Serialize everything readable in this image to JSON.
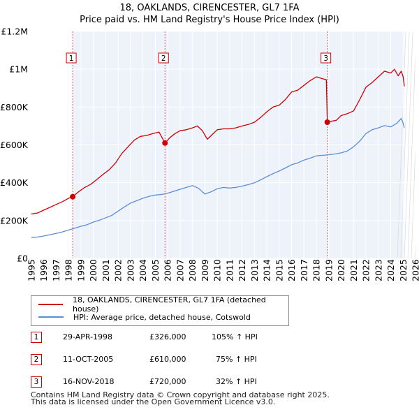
{
  "chart_data": {
    "type": "line",
    "title": "18, OAKLANDS, CIRENCESTER, GL7 1FA",
    "subtitle": "Price paid vs. HM Land Registry's House Price Index (HPI)",
    "xlim": [
      1995,
      2026
    ],
    "ylim": [
      0,
      1200000
    ],
    "x_ticks": [
      "1995",
      "1996",
      "1997",
      "1998",
      "1999",
      "2000",
      "2001",
      "2002",
      "2003",
      "2004",
      "2005",
      "2006",
      "2007",
      "2008",
      "2009",
      "2010",
      "2011",
      "2012",
      "2013",
      "2014",
      "2015",
      "2016",
      "2017",
      "2018",
      "2019",
      "2020",
      "2021",
      "2022",
      "2023",
      "2024",
      "2025",
      "2026"
    ],
    "y_ticks": [
      {
        "value": 0,
        "label": "£0"
      },
      {
        "value": 200000,
        "label": "£200K"
      },
      {
        "value": 400000,
        "label": "£400K"
      },
      {
        "value": 600000,
        "label": "£600K"
      },
      {
        "value": 800000,
        "label": "£800K"
      },
      {
        "value": 1000000,
        "label": "£1M"
      },
      {
        "value": 1200000,
        "label": "£1.2M"
      }
    ],
    "series": [
      {
        "name": "18, OAKLANDS, CIRENCESTER, GL7 1FA (detached house)",
        "color": "#cc0000",
        "x": [
          1995.0,
          1995.5,
          1996.0,
          1996.5,
          1997.0,
          1997.5,
          1998.0,
          1998.33,
          1998.8,
          1999.3,
          1999.8,
          2000.3,
          2000.8,
          2001.3,
          2001.8,
          2002.3,
          2002.8,
          2003.3,
          2003.8,
          2004.3,
          2004.8,
          2005.3,
          2005.78,
          2006.2,
          2006.6,
          2007.0,
          2007.5,
          2008.0,
          2008.4,
          2008.8,
          2009.2,
          2009.6,
          2010.0,
          2010.5,
          2011.0,
          2011.5,
          2012.0,
          2012.5,
          2013.0,
          2013.5,
          2014.0,
          2014.5,
          2015.0,
          2015.5,
          2016.0,
          2016.5,
          2017.0,
          2017.5,
          2018.0,
          2018.5,
          2018.8,
          2018.88,
          2019.2,
          2019.6,
          2020.0,
          2020.5,
          2021.0,
          2021.5,
          2022.0,
          2022.5,
          2023.0,
          2023.5,
          2024.0,
          2024.3,
          2024.6,
          2024.85,
          2025.0,
          2025.1
        ],
        "values": [
          235000,
          240000,
          255000,
          270000,
          285000,
          300000,
          318000,
          326000,
          352000,
          375000,
          392000,
          418000,
          445000,
          470000,
          505000,
          555000,
          590000,
          625000,
          645000,
          650000,
          660000,
          668000,
          610000,
          640000,
          660000,
          675000,
          680000,
          690000,
          700000,
          675000,
          630000,
          655000,
          680000,
          685000,
          685000,
          690000,
          700000,
          708000,
          720000,
          745000,
          775000,
          800000,
          810000,
          840000,
          880000,
          890000,
          915000,
          940000,
          960000,
          950000,
          945000,
          720000,
          725000,
          730000,
          755000,
          765000,
          780000,
          840000,
          905000,
          930000,
          960000,
          990000,
          980000,
          1000000,
          965000,
          990000,
          960000,
          910000
        ]
      },
      {
        "name": "HPI: Average price, detached house, Cotswold",
        "color": "#5b8fd6",
        "x": [
          1995.0,
          1995.5,
          1996.0,
          1996.5,
          1997.0,
          1997.5,
          1998.0,
          1998.5,
          1999.0,
          1999.5,
          2000.0,
          2000.5,
          2001.0,
          2001.5,
          2002.0,
          2002.5,
          2003.0,
          2003.5,
          2004.0,
          2004.5,
          2005.0,
          2005.5,
          2006.0,
          2006.5,
          2007.0,
          2007.5,
          2008.0,
          2008.5,
          2009.0,
          2009.5,
          2010.0,
          2010.5,
          2011.0,
          2011.5,
          2012.0,
          2012.5,
          2013.0,
          2013.5,
          2014.0,
          2014.5,
          2015.0,
          2015.5,
          2016.0,
          2016.5,
          2017.0,
          2017.5,
          2018.0,
          2018.5,
          2019.0,
          2019.5,
          2020.0,
          2020.5,
          2021.0,
          2021.5,
          2022.0,
          2022.5,
          2023.0,
          2023.5,
          2024.0,
          2024.5,
          2024.85,
          2025.0,
          2025.1
        ],
        "values": [
          110000,
          113000,
          118000,
          125000,
          132000,
          140000,
          150000,
          160000,
          170000,
          178000,
          192000,
          202000,
          215000,
          228000,
          250000,
          272000,
          292000,
          305000,
          318000,
          328000,
          335000,
          338000,
          345000,
          355000,
          365000,
          375000,
          385000,
          370000,
          340000,
          352000,
          368000,
          375000,
          372000,
          375000,
          382000,
          390000,
          400000,
          415000,
          432000,
          448000,
          462000,
          478000,
          495000,
          505000,
          520000,
          530000,
          542000,
          545000,
          548000,
          552000,
          558000,
          568000,
          590000,
          620000,
          660000,
          680000,
          690000,
          702000,
          695000,
          715000,
          740000,
          715000,
          690000
        ]
      }
    ],
    "sales": [
      {
        "num": "1",
        "x": 1998.33,
        "value": 326000
      },
      {
        "num": "2",
        "x": 2005.78,
        "value": 610000
      },
      {
        "num": "3",
        "x": 2018.88,
        "value": 720000
      }
    ]
  },
  "legend": {
    "property_label": "18, OAKLANDS, CIRENCESTER, GL7 1FA (detached house)",
    "hpi_label": "HPI: Average price, detached house, Cotswold",
    "property_color": "#cc0000",
    "hpi_color": "#5b8fd6"
  },
  "sales_table": [
    {
      "num": "1",
      "date": "29-APR-1998",
      "price": "£326,000",
      "hpi": "105% ↑ HPI"
    },
    {
      "num": "2",
      "date": "11-OCT-2005",
      "price": "£610,000",
      "hpi": "75% ↑ HPI"
    },
    {
      "num": "3",
      "date": "16-NOV-2018",
      "price": "£720,000",
      "hpi": "32% ↑ HPI"
    }
  ],
  "footer": {
    "line1": "Contains HM Land Registry data © Crown copyright and database right 2025.",
    "line2": "This data is licensed under the Open Government Licence v3.0."
  }
}
